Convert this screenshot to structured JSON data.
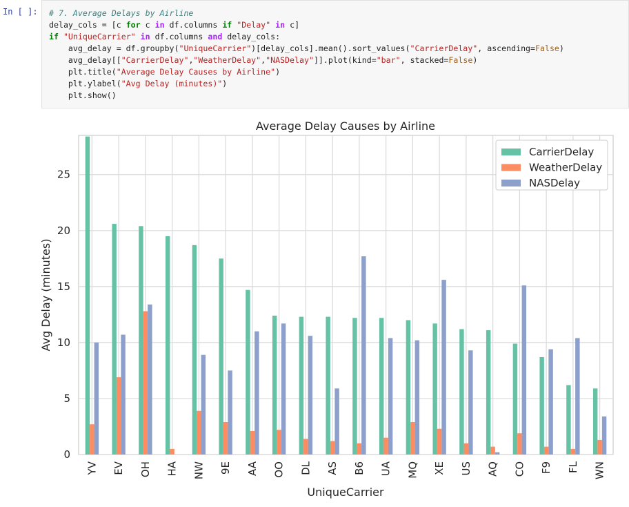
{
  "notebook": {
    "prompt": "In [ ]:",
    "code_lines": [
      [
        {
          "t": "# 7. Average Delays by Airline",
          "c": "cm"
        }
      ],
      [
        {
          "t": "delay_cols = [c "
        },
        {
          "t": "for",
          "c": "kw"
        },
        {
          "t": " c "
        },
        {
          "t": "in",
          "c": "kw2"
        },
        {
          "t": " df.columns "
        },
        {
          "t": "if",
          "c": "kw"
        },
        {
          "t": " "
        },
        {
          "t": "\"Delay\"",
          "c": "st"
        },
        {
          "t": " "
        },
        {
          "t": "in",
          "c": "kw2"
        },
        {
          "t": " c]"
        }
      ],
      [
        {
          "t": "if",
          "c": "kw"
        },
        {
          "t": " "
        },
        {
          "t": "\"UniqueCarrier\"",
          "c": "st"
        },
        {
          "t": " "
        },
        {
          "t": "in",
          "c": "kw2"
        },
        {
          "t": " df.columns "
        },
        {
          "t": "and",
          "c": "kw2"
        },
        {
          "t": " delay_cols:"
        }
      ],
      [
        {
          "t": "    avg_delay = df.groupby("
        },
        {
          "t": "\"UniqueCarrier\"",
          "c": "st"
        },
        {
          "t": ")[delay_cols].mean().sort_values("
        },
        {
          "t": "\"CarrierDelay\"",
          "c": "st"
        },
        {
          "t": ", ascending="
        },
        {
          "t": "False",
          "c": "fl"
        },
        {
          "t": ")"
        }
      ],
      [
        {
          "t": "    avg_delay[["
        },
        {
          "t": "\"CarrierDelay\"",
          "c": "st"
        },
        {
          "t": ","
        },
        {
          "t": "\"WeatherDelay\"",
          "c": "st"
        },
        {
          "t": ","
        },
        {
          "t": "\"NASDelay\"",
          "c": "st"
        },
        {
          "t": "]].plot(kind="
        },
        {
          "t": "\"bar\"",
          "c": "st"
        },
        {
          "t": ", stacked="
        },
        {
          "t": "False",
          "c": "fl"
        },
        {
          "t": ")"
        }
      ],
      [
        {
          "t": "    plt.title("
        },
        {
          "t": "\"Average Delay Causes by Airline\"",
          "c": "st"
        },
        {
          "t": ")"
        }
      ],
      [
        {
          "t": "    plt.ylabel("
        },
        {
          "t": "\"Avg Delay (minutes)\"",
          "c": "st"
        },
        {
          "t": ")"
        }
      ],
      [
        {
          "t": "    plt.show()"
        }
      ]
    ]
  },
  "chart_data": {
    "type": "bar",
    "title": "Average Delay Causes by Airline",
    "xlabel": "UniqueCarrier",
    "ylabel": "Avg Delay (minutes)",
    "ylim": [
      0,
      28.5
    ],
    "yticks": [
      0,
      5,
      10,
      15,
      20,
      25
    ],
    "grid": true,
    "legend_position": "top-right",
    "categories": [
      "YV",
      "EV",
      "OH",
      "HA",
      "NW",
      "9E",
      "AA",
      "OO",
      "DL",
      "AS",
      "B6",
      "UA",
      "MQ",
      "XE",
      "US",
      "AQ",
      "CO",
      "F9",
      "FL",
      "WN"
    ],
    "series": [
      {
        "name": "CarrierDelay",
        "color": "#66c2a5",
        "values": [
          28.4,
          20.6,
          20.4,
          19.5,
          18.7,
          17.5,
          14.7,
          12.4,
          12.3,
          12.3,
          12.2,
          12.2,
          12.0,
          11.7,
          11.2,
          11.1,
          9.9,
          8.7,
          6.2,
          5.9
        ]
      },
      {
        "name": "WeatherDelay",
        "color": "#fc8d62",
        "values": [
          2.7,
          6.9,
          12.8,
          0.5,
          3.9,
          2.9,
          2.1,
          2.2,
          1.4,
          1.2,
          1.0,
          1.5,
          2.9,
          2.3,
          1.0,
          0.7,
          1.9,
          0.7,
          0.5,
          1.3
        ]
      },
      {
        "name": "NASDelay",
        "color": "#8da0cb",
        "values": [
          10.0,
          10.7,
          13.4,
          0.0,
          8.9,
          7.5,
          11.0,
          11.7,
          10.6,
          5.9,
          17.7,
          10.4,
          10.2,
          15.6,
          9.3,
          0.2,
          15.1,
          9.4,
          10.4,
          3.4
        ]
      }
    ]
  }
}
